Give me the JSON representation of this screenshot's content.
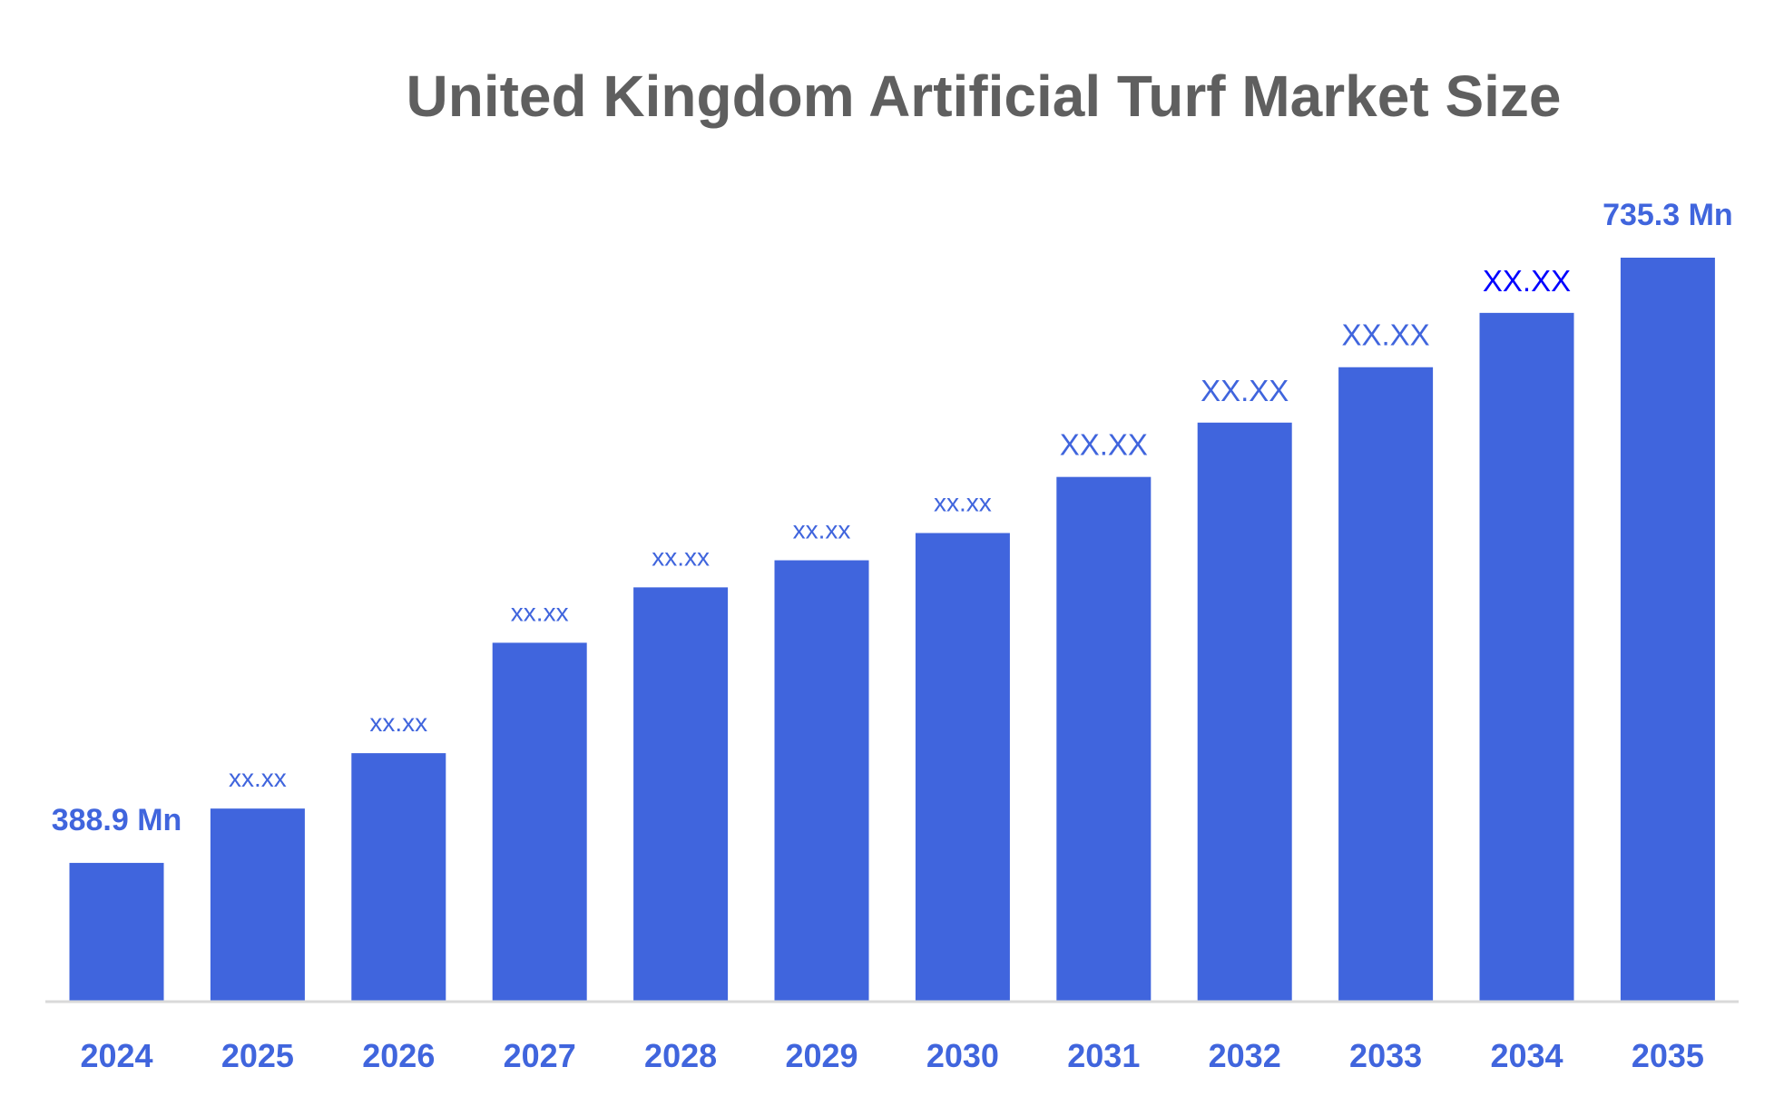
{
  "chart_data": {
    "type": "bar",
    "title": "United Kingdom Artificial Turf Market Size",
    "xlabel": "",
    "ylabel": "",
    "categories": [
      "2024",
      "2025",
      "2026",
      "2027",
      "2028",
      "2029",
      "2030",
      "2031",
      "2032",
      "2033",
      "2034",
      "2035"
    ],
    "values": [
      388.9,
      420.0,
      451.7,
      514.9,
      546.6,
      562.1,
      577.7,
      609.8,
      640.9,
      672.6,
      703.7,
      735.3
    ],
    "data_labels": [
      "388.9 Mn",
      "xx.xx",
      "xx.xx",
      "xx.xx",
      "xx.xx",
      "xx.xx",
      "xx.xx",
      "XX.XX",
      "XX.XX",
      "XX.XX",
      "XX.XX",
      "735.3 Mn"
    ],
    "label_styles": [
      "big",
      "small",
      "small",
      "small",
      "small",
      "small",
      "small",
      "mid",
      "mid",
      "mid",
      "mid",
      "big"
    ],
    "label_colors": [
      "#4065dd",
      "#4065dd",
      "#4065dd",
      "#4065dd",
      "#4065dd",
      "#4065dd",
      "#4065dd",
      "#4065dd",
      "#4065dd",
      "#4065dd",
      "#0000ff",
      "#4065dd"
    ],
    "ylim": [
      310,
      735.3
    ],
    "grid": false,
    "legend": "none",
    "colors": {
      "bar": "#4065dd",
      "axis_text": "#4065dd",
      "title": "#5f5f5f",
      "axis_line": "#d9d9d9"
    }
  }
}
